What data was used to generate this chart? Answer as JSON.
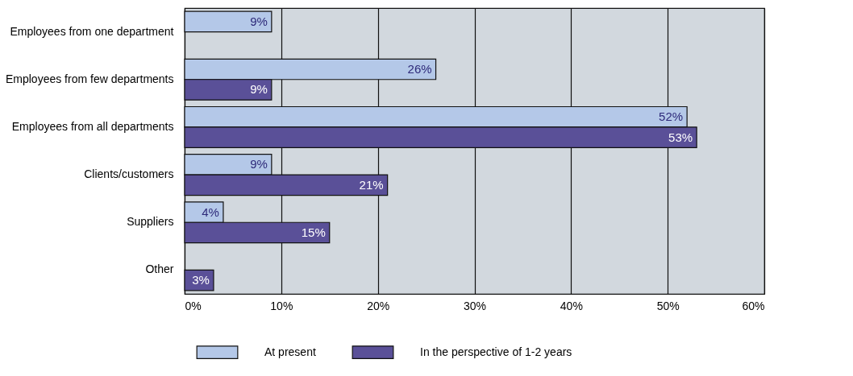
{
  "chart_data": {
    "type": "bar",
    "orientation": "horizontal",
    "categories": [
      "Employees from one department",
      "Employees from few departments",
      "Employees from all departments",
      "Clients/customers",
      "Suppliers",
      "Other"
    ],
    "series": [
      {
        "name": "At present",
        "color": "#b4c8e8",
        "values": [
          9,
          26,
          52,
          9,
          4,
          null
        ],
        "value_labels": [
          "9%",
          "26%",
          "52%",
          "9%",
          "4%",
          null
        ]
      },
      {
        "name": "In the perspective of 1-2 years",
        "color": "#5a5098",
        "values": [
          null,
          9,
          53,
          21,
          15,
          3
        ],
        "value_labels": [
          null,
          "9%",
          "53%",
          "21%",
          "15%",
          "3%"
        ]
      }
    ],
    "xlim": [
      0,
      60
    ],
    "xticks": [
      {
        "value": 0,
        "label": "0%"
      },
      {
        "value": 10,
        "label": "10%"
      },
      {
        "value": 20,
        "label": "20%"
      },
      {
        "value": 30,
        "label": "30%"
      },
      {
        "value": 40,
        "label": "40%"
      },
      {
        "value": 50,
        "label": "50%"
      },
      {
        "value": 60,
        "label": "60%"
      }
    ],
    "grid": "x",
    "legend": "bottom"
  }
}
